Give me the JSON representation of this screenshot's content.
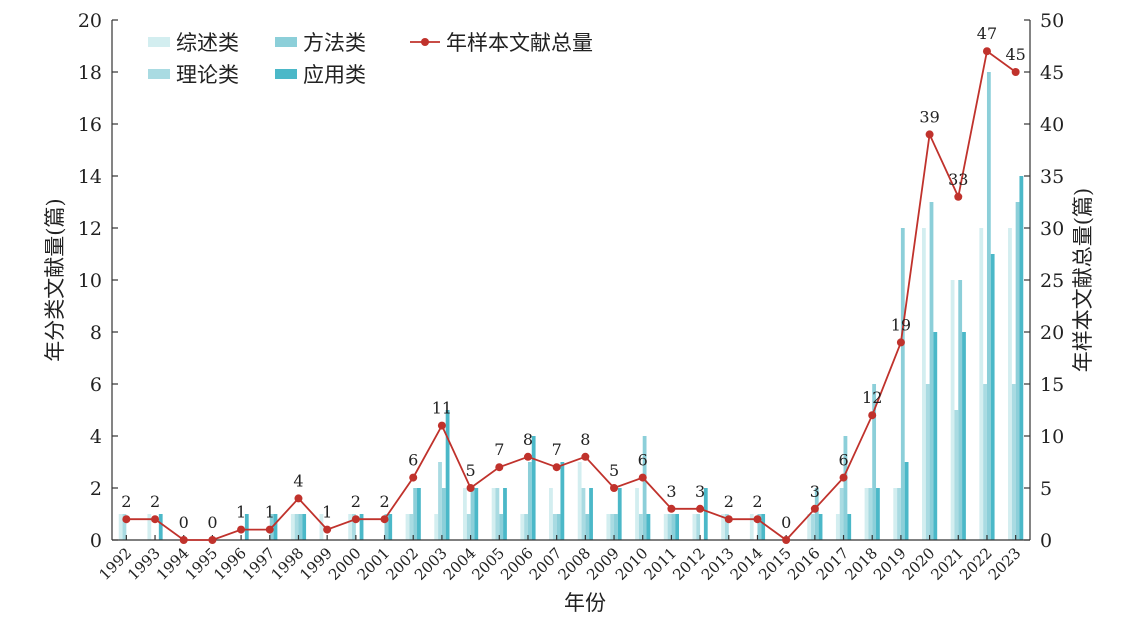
{
  "chart_data": {
    "type": "bar+line",
    "title": "",
    "xlabel": "年份",
    "ylabel_left": "年分类文献量(篇)",
    "ylabel_right": "年样本文献总量(篇)",
    "ylim_left": [
      0,
      20
    ],
    "ylim_right": [
      0,
      50
    ],
    "yticks_left": [
      "0",
      "2",
      "4",
      "6",
      "8",
      "10",
      "12",
      "14",
      "16",
      "18",
      "20"
    ],
    "yticks_right": [
      "0",
      "5",
      "10",
      "15",
      "20",
      "25",
      "30",
      "35",
      "40",
      "45",
      "50"
    ],
    "legend_position": "top-left",
    "categories": [
      "1992",
      "1993",
      "1994",
      "1995",
      "1996",
      "1997",
      "1998",
      "1999",
      "2000",
      "2001",
      "2002",
      "2003",
      "2004",
      "2005",
      "2006",
      "2007",
      "2008",
      "2009",
      "2010",
      "2011",
      "2012",
      "2013",
      "2014",
      "2015",
      "2016",
      "2017",
      "2018",
      "2019",
      "2020",
      "2021",
      "2022",
      "2023"
    ],
    "bar_series": [
      {
        "name": "综述类",
        "color": "#d3eef0",
        "values": [
          1,
          1,
          0,
          0,
          0,
          0,
          1,
          1,
          1,
          0,
          1,
          1,
          2,
          2,
          1,
          2,
          3,
          1,
          2,
          1,
          1,
          1,
          1,
          0,
          1,
          1,
          2,
          2,
          12,
          10,
          12,
          12
        ]
      },
      {
        "name": "理论类",
        "color": "#a9dbe2",
        "values": [
          1,
          0,
          0,
          0,
          0,
          0,
          1,
          0,
          1,
          0,
          1,
          3,
          1,
          2,
          1,
          1,
          2,
          1,
          1,
          1,
          1,
          1,
          0,
          0,
          1,
          2,
          2,
          2,
          6,
          5,
          6,
          6
        ]
      },
      {
        "name": "方法类",
        "color": "#8ccfd9",
        "values": [
          0,
          0,
          0,
          0,
          0,
          1,
          1,
          0,
          0,
          1,
          2,
          2,
          2,
          1,
          3,
          1,
          1,
          1,
          4,
          1,
          0,
          0,
          1,
          0,
          2,
          4,
          6,
          12,
          13,
          10,
          18,
          13
        ]
      },
      {
        "name": "应用类",
        "color": "#4bb8c8",
        "values": [
          0,
          1,
          0,
          0,
          1,
          1,
          1,
          0,
          1,
          1,
          2,
          5,
          2,
          2,
          4,
          3,
          2,
          2,
          1,
          1,
          2,
          0,
          1,
          0,
          1,
          1,
          2,
          3,
          8,
          8,
          11,
          14
        ]
      }
    ],
    "line_series": {
      "name": "年样本文献总量",
      "color": "#c0322c",
      "axis": "right",
      "values": [
        2,
        2,
        0,
        0,
        1,
        1,
        4,
        1,
        2,
        2,
        6,
        11,
        5,
        7,
        8,
        7,
        8,
        5,
        6,
        3,
        3,
        2,
        2,
        0,
        3,
        6,
        12,
        19,
        39,
        33,
        47,
        45
      ],
      "data_labels": [
        "2",
        "2",
        "0",
        "0",
        "1",
        "1",
        "4",
        "1",
        "2",
        "2",
        "6",
        "11",
        "5",
        "7",
        "8",
        "7",
        "8",
        "5",
        "6",
        "3",
        "3",
        "2",
        "2",
        "0",
        "3",
        "6",
        "12",
        "19",
        "39",
        "33",
        "47",
        "45"
      ]
    }
  }
}
